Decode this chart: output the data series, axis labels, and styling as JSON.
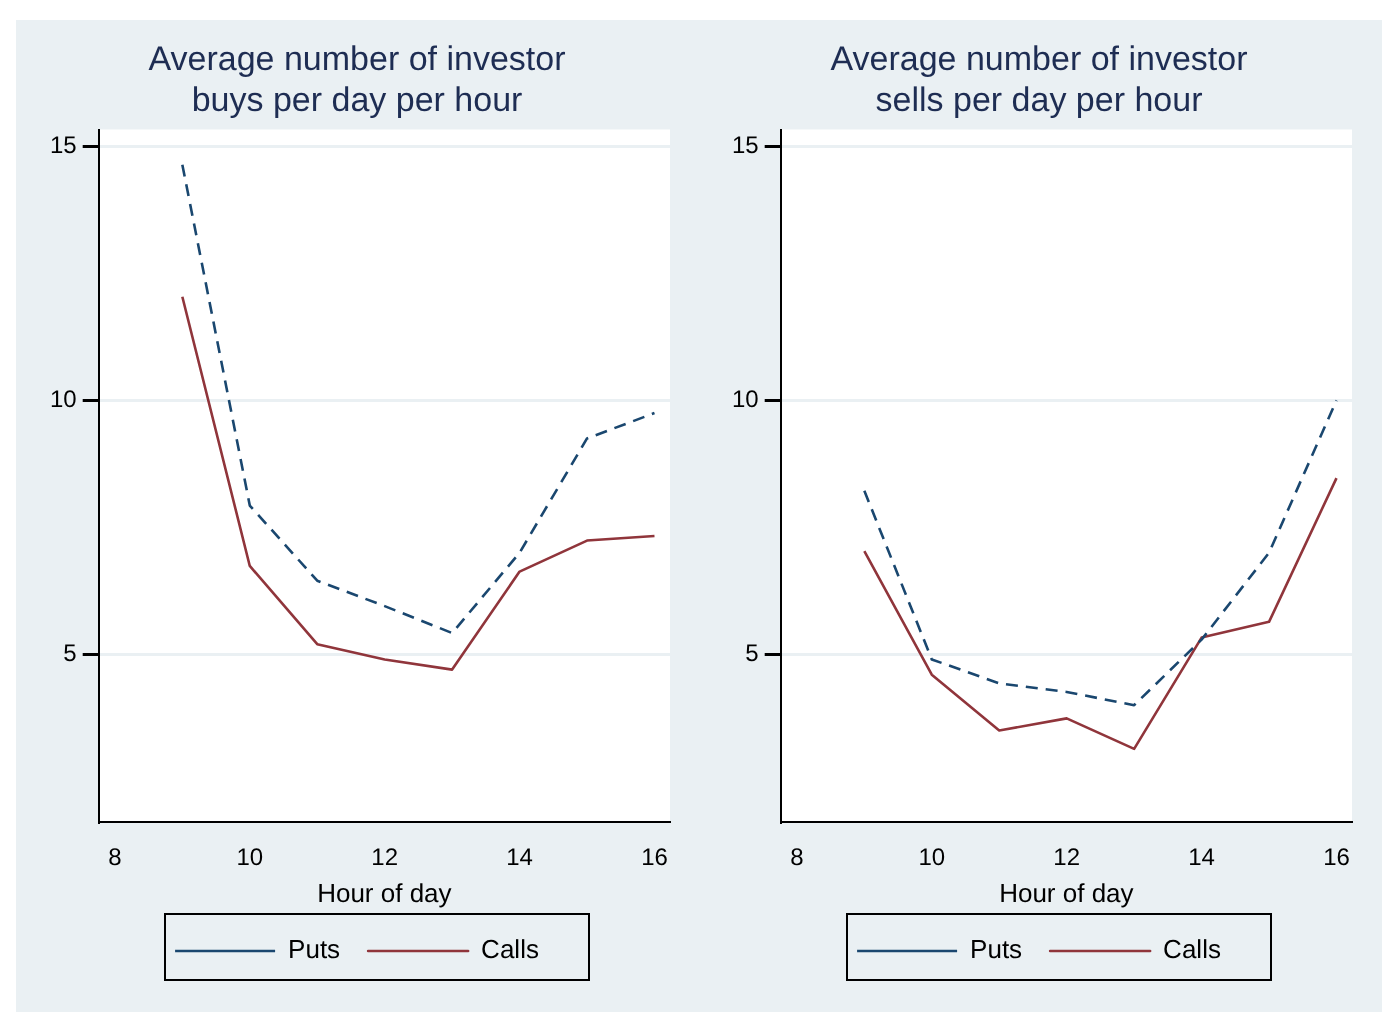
{
  "chart_data": [
    {
      "type": "line",
      "title": "Average number of investor buys per day per hour",
      "xlabel": "Hour of day",
      "x": [
        9,
        10,
        11,
        12,
        13,
        14,
        15,
        16
      ],
      "xlim": [
        7.76,
        16.23
      ],
      "xticks": [
        8,
        10,
        12,
        14,
        16
      ],
      "ylim": [
        1.7,
        15.33
      ],
      "yticks": [
        5,
        10,
        15
      ],
      "grid": "y",
      "legend": "bottom",
      "marker": "none",
      "series": [
        {
          "name": "Puts",
          "color": "#1a476f",
          "line_style": "dashed",
          "values": [
            14.64,
            7.93,
            6.45,
            5.95,
            5.42,
            7.0,
            9.25,
            9.75
          ]
        },
        {
          "name": "Calls",
          "color": "#90353b",
          "line_style": "solid",
          "values": [
            12.04,
            6.74,
            5.2,
            4.9,
            4.7,
            6.63,
            7.24,
            7.33
          ]
        }
      ]
    },
    {
      "type": "line",
      "title": "Average number of investor sells per day per hour",
      "xlabel": "Hour of day",
      "x": [
        9,
        10,
        11,
        12,
        13,
        14,
        15,
        16
      ],
      "xlim": [
        7.76,
        16.23
      ],
      "xticks": [
        8,
        10,
        12,
        14,
        16
      ],
      "ylim": [
        1.7,
        15.33
      ],
      "yticks": [
        5,
        10,
        15
      ],
      "grid": "y",
      "legend": "bottom",
      "marker": "none",
      "series": [
        {
          "name": "Puts",
          "color": "#1a476f",
          "line_style": "dashed",
          "values": [
            8.22,
            4.9,
            4.43,
            4.26,
            4.0,
            5.29,
            7.0,
            10.0
          ]
        },
        {
          "name": "Calls",
          "color": "#90353b",
          "line_style": "solid",
          "values": [
            7.03,
            4.6,
            3.5,
            3.74,
            3.14,
            5.33,
            5.64,
            8.47
          ]
        }
      ]
    }
  ]
}
